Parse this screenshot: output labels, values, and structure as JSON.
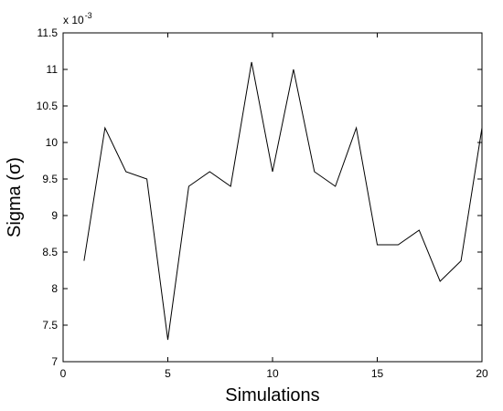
{
  "chart_data": {
    "type": "line",
    "title": "",
    "xlabel": "Simulations",
    "ylabel": "Sigma (σ)",
    "xlim": [
      0,
      20
    ],
    "ylim": [
      7,
      11.5
    ],
    "y_multiplier": {
      "base": "x 10",
      "exponent": "-3"
    },
    "xticks": [
      0,
      5,
      10,
      15,
      20
    ],
    "yticks": [
      7,
      7.5,
      8,
      8.5,
      9,
      9.5,
      10,
      10.5,
      11,
      11.5
    ],
    "grid": false,
    "series": [
      {
        "color": "#000000",
        "x": [
          1,
          2,
          3,
          4,
          5,
          6,
          7,
          8,
          9,
          10,
          11,
          12,
          13,
          14,
          15,
          16,
          17,
          18,
          19,
          20
        ],
        "y": [
          8.38,
          10.2,
          9.6,
          9.5,
          7.3,
          9.4,
          9.6,
          9.4,
          11.1,
          9.6,
          11.0,
          9.6,
          9.4,
          10.2,
          8.6,
          8.6,
          8.8,
          8.1,
          8.38,
          10.2
        ]
      }
    ]
  }
}
